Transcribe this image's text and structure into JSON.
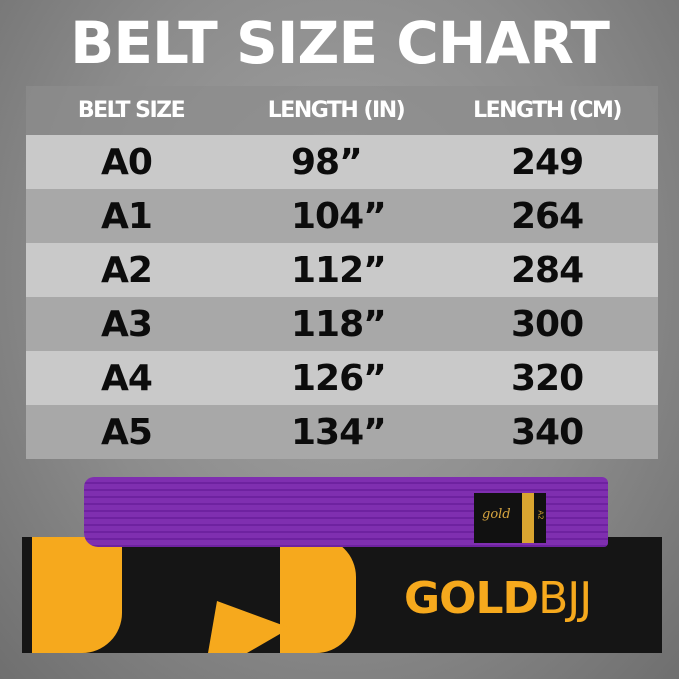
{
  "title": "BELT SIZE CHART",
  "table": {
    "headers": [
      "BELT SIZE",
      "LENGTH (IN)",
      "LENGTH (CM)"
    ],
    "rows": [
      [
        "A0",
        "98”",
        "249"
      ],
      [
        "A1",
        "104”",
        "264"
      ],
      [
        "A2",
        "112”",
        "284"
      ],
      [
        "A3",
        "118”",
        "300"
      ],
      [
        "A4",
        "126”",
        "320"
      ],
      [
        "A5",
        "134”",
        "340"
      ]
    ]
  },
  "product": {
    "brand_bold": "GOLD",
    "brand_light": "BJJ",
    "tag_script": "gold",
    "tag_size": "A2",
    "belt_color": "#7f2fb0",
    "accent_color": "#f6a91d"
  }
}
